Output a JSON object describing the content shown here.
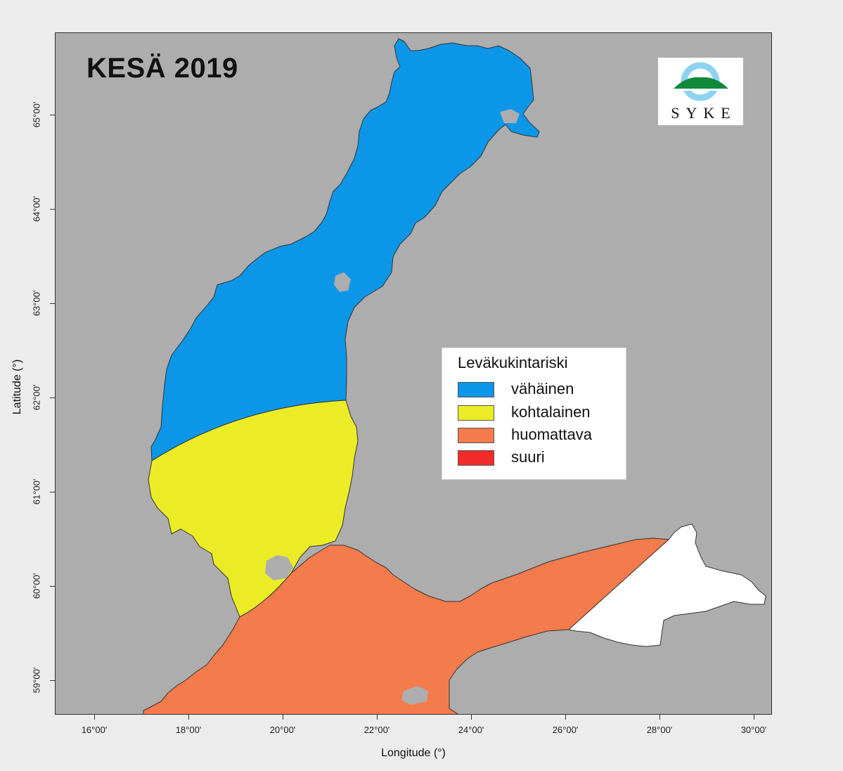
{
  "map": {
    "title": "KESÄ 2019",
    "background_color": "#adadad",
    "logo": {
      "text": "SYKE"
    },
    "legend": {
      "title": "Leväkukintariski",
      "items": [
        {
          "label": "vähäinen",
          "color": "#0b96e8"
        },
        {
          "label": "kohtalainen",
          "color": "#ecec26"
        },
        {
          "label": "huomattava",
          "color": "#f47b4c"
        },
        {
          "label": "suuri",
          "color": "#f22a2a"
        }
      ]
    },
    "no_data_color": "#ffffff",
    "y_axis": {
      "label": "Latitude (°)",
      "ticks": [
        "65°00'",
        "64°00'",
        "63°00'",
        "62°00'",
        "61°00'",
        "60°00'",
        "59°00'"
      ]
    },
    "x_axis": {
      "label": "Longitude (°)",
      "ticks": [
        "16°00'",
        "18°00'",
        "20°00'",
        "22°00'",
        "24°00'",
        "26°00'",
        "28°00'",
        "30°00'"
      ]
    }
  }
}
